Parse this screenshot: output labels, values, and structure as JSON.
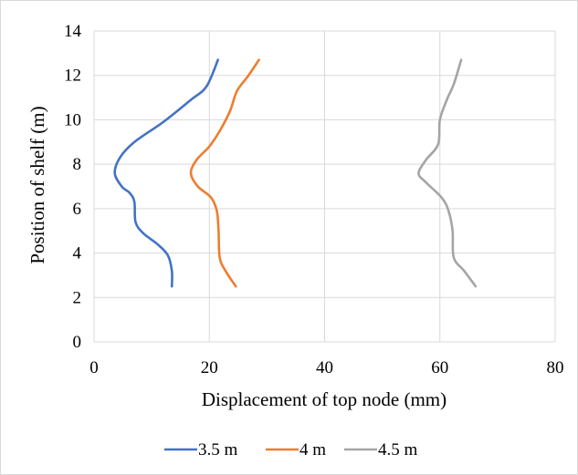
{
  "chart_data": {
    "type": "line",
    "xlabel": "Displacement of top node (mm)",
    "ylabel": "Position of shelf (m)",
    "xlim": [
      0,
      80
    ],
    "ylim": [
      0,
      14
    ],
    "x_ticks": [
      "0",
      "20",
      "40",
      "60",
      "80"
    ],
    "y_ticks": [
      "0",
      "2",
      "4",
      "6",
      "8",
      "10",
      "12",
      "14"
    ],
    "grid": true,
    "legend_position": "bottom",
    "series": [
      {
        "name": "3.5 m",
        "color": "#4472c4",
        "points": [
          [
            13.5,
            2.5
          ],
          [
            13.5,
            3.2
          ],
          [
            12.8,
            3.9
          ],
          [
            11.0,
            4.4
          ],
          [
            8.5,
            4.9
          ],
          [
            7.2,
            5.4
          ],
          [
            7.0,
            6.3
          ],
          [
            6.2,
            6.7
          ],
          [
            4.8,
            7.0
          ],
          [
            3.6,
            7.6
          ],
          [
            4.5,
            8.3
          ],
          [
            7.0,
            9.0
          ],
          [
            12.0,
            9.9
          ],
          [
            16.8,
            10.9
          ],
          [
            19.5,
            11.5
          ],
          [
            21.5,
            12.7
          ]
        ]
      },
      {
        "name": "4 m",
        "color": "#ed7d31",
        "points": [
          [
            24.6,
            2.5
          ],
          [
            22.8,
            3.2
          ],
          [
            21.8,
            3.8
          ],
          [
            21.6,
            5.0
          ],
          [
            21.3,
            5.9
          ],
          [
            20.3,
            6.5
          ],
          [
            18.0,
            7.0
          ],
          [
            16.8,
            7.6
          ],
          [
            17.8,
            8.2
          ],
          [
            20.0,
            8.8
          ],
          [
            21.8,
            9.5
          ],
          [
            23.6,
            10.4
          ],
          [
            24.8,
            11.3
          ],
          [
            26.8,
            12.0
          ],
          [
            28.6,
            12.7
          ]
        ]
      },
      {
        "name": "4.5 m",
        "color": "#a5a5a5",
        "points": [
          [
            66.2,
            2.5
          ],
          [
            64.2,
            3.2
          ],
          [
            62.4,
            3.8
          ],
          [
            62.2,
            5.0
          ],
          [
            61.5,
            5.9
          ],
          [
            60.3,
            6.5
          ],
          [
            57.5,
            7.2
          ],
          [
            56.3,
            7.6
          ],
          [
            57.6,
            8.2
          ],
          [
            59.7,
            8.9
          ],
          [
            60.0,
            10.0
          ],
          [
            61.2,
            10.9
          ],
          [
            62.4,
            11.6
          ],
          [
            63.7,
            12.7
          ]
        ]
      }
    ]
  }
}
